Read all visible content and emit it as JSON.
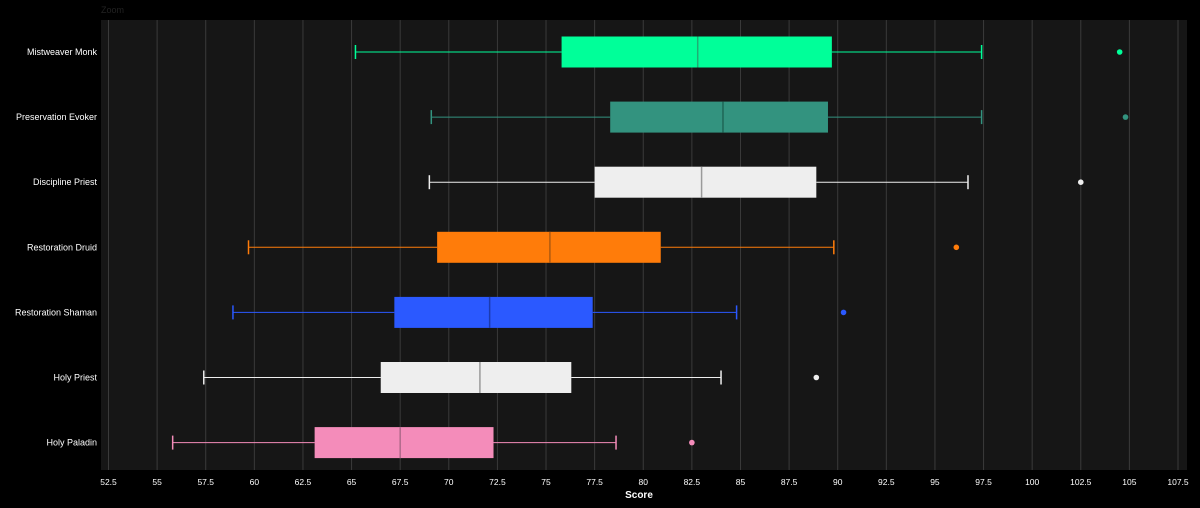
{
  "toolbar": {
    "zoom_label": "Zoom"
  },
  "colors": {
    "background": "#000000",
    "plot_background": "#161616",
    "grid": "#3a3a3a"
  },
  "chart_data": {
    "type": "boxplot",
    "orientation": "horizontal",
    "title": "",
    "xlabel": "Score",
    "ylabel": "",
    "xlim": [
      52.5,
      107.5
    ],
    "xticks": [
      52.5,
      55,
      57.5,
      60,
      62.5,
      65,
      67.5,
      70,
      72.5,
      75,
      77.5,
      80,
      82.5,
      85,
      87.5,
      90,
      92.5,
      95,
      97.5,
      100,
      102.5,
      105,
      107.5
    ],
    "grid": true,
    "legend": "none",
    "series": [
      {
        "name": "Mistweaver Monk",
        "color": "#00ff99",
        "whisker_color": "#00ff99",
        "median_color": "#1fae74",
        "min": 65.2,
        "q1": 75.8,
        "median": 82.8,
        "q3": 89.7,
        "max": 97.4,
        "outliers": [
          104.5
        ]
      },
      {
        "name": "Preservation Evoker",
        "color": "#33937f",
        "whisker_color": "#33937f",
        "median_color": "#1f6656",
        "min": 69.1,
        "q1": 78.3,
        "median": 84.1,
        "q3": 89.5,
        "max": 97.4,
        "outliers": [
          104.8
        ]
      },
      {
        "name": "Discipline Priest",
        "color": "#eeeeee",
        "whisker_color": "#eeeeee",
        "median_color": "#9a9a9a",
        "min": 69.0,
        "q1": 77.5,
        "median": 83.0,
        "q3": 88.9,
        "max": 96.7,
        "outliers": [
          102.5
        ]
      },
      {
        "name": "Restoration Druid",
        "color": "#ff7c0a",
        "whisker_color": "#ff7c0a",
        "median_color": "#b05a10",
        "min": 59.7,
        "q1": 69.4,
        "median": 75.2,
        "q3": 80.9,
        "max": 89.8,
        "outliers": [
          96.1
        ]
      },
      {
        "name": "Restoration Shaman",
        "color": "#2b59ff",
        "whisker_color": "#2b59ff",
        "median_color": "#1c3bb0",
        "min": 58.9,
        "q1": 67.2,
        "median": 72.1,
        "q3": 77.4,
        "max": 84.8,
        "outliers": [
          90.3
        ]
      },
      {
        "name": "Holy Priest",
        "color": "#eeeeee",
        "whisker_color": "#eeeeee",
        "median_color": "#9a9a9a",
        "min": 57.4,
        "q1": 66.5,
        "median": 71.6,
        "q3": 76.3,
        "max": 84.0,
        "outliers": [
          88.9
        ]
      },
      {
        "name": "Holy Paladin",
        "color": "#f48cba",
        "whisker_color": "#f48cba",
        "median_color": "#b06a8a",
        "min": 55.8,
        "q1": 63.1,
        "median": 67.5,
        "q3": 72.3,
        "max": 78.6,
        "outliers": [
          82.5
        ]
      }
    ]
  }
}
